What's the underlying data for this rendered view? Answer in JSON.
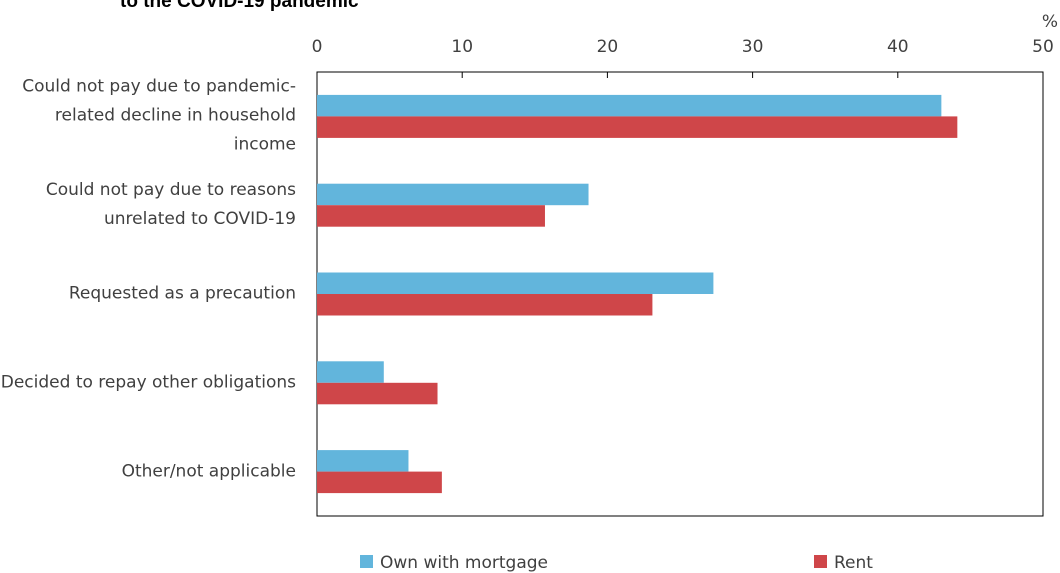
{
  "chart_data": {
    "type": "bar",
    "orientation": "horizontal",
    "title": "to the COVID-19 pandemic",
    "unit_label": "%",
    "categories": [
      "Could not pay due to pandemic-related decline in household income",
      "Could not pay due to reasons unrelated to COVID-19",
      "Requested as a precaution",
      "Decided to repay other obligations",
      "Other/not applicable"
    ],
    "series": [
      {
        "name": "Own with mortgage",
        "color": "#62b5dc",
        "values": [
          43.0,
          18.7,
          27.3,
          4.6,
          6.3
        ]
      },
      {
        "name": "Rent",
        "color": "#cf4649",
        "values": [
          44.1,
          15.7,
          23.1,
          8.3,
          8.6
        ]
      }
    ],
    "xlim": [
      0,
      50
    ],
    "xticks": [
      0,
      10,
      20,
      30,
      40,
      50
    ],
    "legend": "bottom"
  }
}
